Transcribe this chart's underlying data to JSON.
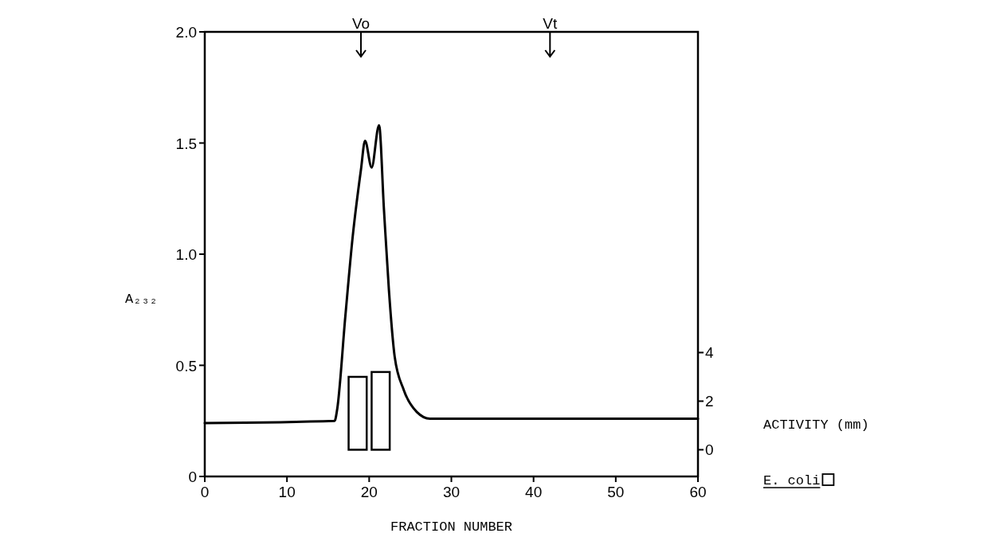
{
  "chart_data": {
    "type": "line",
    "xlabel": "FRACTION NUMBER",
    "ylabel": "A₂₃₂",
    "y2label": "ACTIVITY (mm)",
    "xlim": [
      0,
      60
    ],
    "xticks": [
      0,
      10,
      20,
      30,
      40,
      50,
      60
    ],
    "ylim": [
      0,
      2
    ],
    "yticks": [
      0,
      {
        "value": 0.5,
        "label": "0.5"
      },
      {
        "value": 1,
        "label": "1.0"
      },
      {
        "value": 1.5,
        "label": "1.5"
      },
      {
        "value": 2,
        "label": "2.0"
      }
    ],
    "y2lim": [
      -1.1,
      17.2
    ],
    "y2ticks": [
      0,
      2,
      4
    ],
    "series": [
      {
        "color": "#000000",
        "x": [
          0,
          15.8,
          16.1,
          17.1,
          18.0,
          19.0,
          19.5,
          20.3,
          21.2,
          21.8,
          22.4,
          23.1,
          24.2,
          25.8,
          27.4,
          29,
          60
        ],
        "values": [
          0.24,
          0.25,
          0.3,
          0.72,
          1.08,
          1.38,
          1.51,
          1.39,
          1.58,
          1.2,
          0.84,
          0.54,
          0.39,
          0.29,
          0.26,
          0.26,
          0.26
        ]
      },
      {
        "type": "bar",
        "name": "E. coli",
        "color": "#ffffff",
        "axis": "y2",
        "x": [
          18.6,
          21.4
        ],
        "values": [
          3.0,
          3.2
        ]
      }
    ],
    "ref_lines": [
      {
        "axis": "x",
        "value": 19,
        "label": "Vo"
      },
      {
        "axis": "x",
        "value": 42,
        "label": "Vt"
      }
    ],
    "legend": "right",
    "grid": false
  }
}
